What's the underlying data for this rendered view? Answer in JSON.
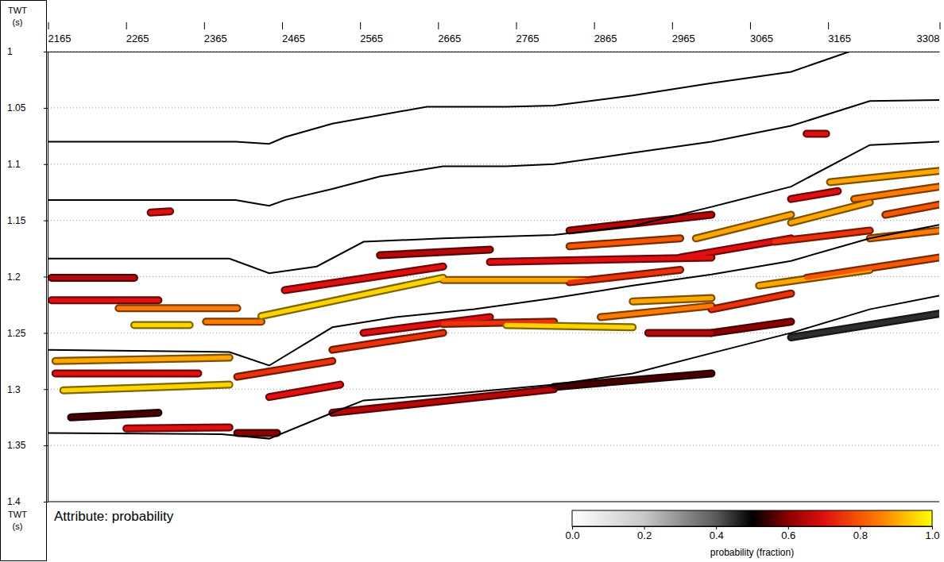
{
  "chart_data": {
    "type": "seismic_section",
    "annotation": "Attribute: probability",
    "ylabel": "TWT (s)",
    "xlim": [
      2165,
      3308
    ],
    "xticks": [
      2165,
      2265,
      2365,
      2465,
      2565,
      2665,
      2765,
      2865,
      2965,
      3065,
      3165,
      3308
    ],
    "ylim": [
      1,
      1.4
    ],
    "yticks": [
      1,
      1.05,
      1.1,
      1.15,
      1.2,
      1.25,
      1.3,
      1.35,
      1.4
    ],
    "grid": true,
    "horizons": [
      {
        "x": [
          2165,
          2406,
          2449,
          2469,
          2530,
          2651,
          2753,
          2814,
          2915,
          3016,
          3118,
          3193
        ],
        "twt": [
          1.08,
          1.08,
          1.082,
          1.076,
          1.064,
          1.049,
          1.049,
          1.048,
          1.039,
          1.028,
          1.018,
          1.0
        ]
      },
      {
        "x": [
          2165,
          2406,
          2449,
          2469,
          2530,
          2591,
          2672,
          2753,
          2814,
          2915,
          3016,
          3118,
          3219,
          3308
        ],
        "twt": [
          1.132,
          1.132,
          1.137,
          1.132,
          1.122,
          1.111,
          1.102,
          1.102,
          1.1,
          1.09,
          1.08,
          1.066,
          1.044,
          1.043
        ]
      },
      {
        "x": [
          2165,
          2398,
          2449,
          2510,
          2570,
          2672,
          2814,
          2915,
          3016,
          3118,
          3219,
          3308
        ],
        "twt": [
          1.184,
          1.184,
          1.197,
          1.191,
          1.169,
          1.166,
          1.163,
          1.155,
          1.138,
          1.12,
          1.083,
          1.08
        ]
      },
      {
        "x": [
          2165,
          2398,
          2449,
          2530,
          2611,
          2712,
          2814,
          2915,
          3016,
          3118,
          3219,
          3308
        ],
        "twt": [
          1.265,
          1.267,
          1.279,
          1.245,
          1.236,
          1.229,
          1.219,
          1.208,
          1.198,
          1.186,
          1.166,
          1.154
        ]
      },
      {
        "x": [
          2165,
          2388,
          2449,
          2530,
          2570,
          2672,
          2814,
          2915,
          3016,
          3118,
          3219,
          3308
        ],
        "twt": [
          1.339,
          1.34,
          1.344,
          1.321,
          1.31,
          1.305,
          1.296,
          1.286,
          1.268,
          1.25,
          1.229,
          1.217
        ]
      }
    ],
    "bodies": [
      {
        "x": [
          2170,
          2276
        ],
        "twt": [
          1.201,
          1.201
        ],
        "probability": 0.65
      },
      {
        "x": [
          2170,
          2307
        ],
        "twt": [
          1.221,
          1.221
        ],
        "probability": 0.7
      },
      {
        "x": [
          2256,
          2408
        ],
        "twt": [
          1.228,
          1.228
        ],
        "probability": 0.85
      },
      {
        "x": [
          2276,
          2347
        ],
        "twt": [
          1.243,
          1.243
        ],
        "probability": 0.95
      },
      {
        "x": [
          2368,
          2439
        ],
        "twt": [
          1.24,
          1.24
        ],
        "probability": 0.85
      },
      {
        "x": [
          2439,
          2672
        ],
        "twt": [
          1.235,
          1.201
        ],
        "probability": 0.95
      },
      {
        "x": [
          2672,
          2854
        ],
        "twt": [
          1.203,
          1.203
        ],
        "probability": 0.9
      },
      {
        "x": [
          2834,
          2976
        ],
        "twt": [
          1.205,
          1.194
        ],
        "probability": 0.75
      },
      {
        "x": [
          2469,
          2672
        ],
        "twt": [
          1.212,
          1.191
        ],
        "probability": 0.7
      },
      {
        "x": [
          2591,
          2732
        ],
        "twt": [
          1.181,
          1.176
        ],
        "probability": 0.65
      },
      {
        "x": [
          2732,
          3016
        ],
        "twt": [
          1.187,
          1.183
        ],
        "probability": 0.7
      },
      {
        "x": [
          2834,
          2976
        ],
        "twt": [
          1.173,
          1.166
        ],
        "probability": 0.8
      },
      {
        "x": [
          2976,
          3118
        ],
        "twt": [
          1.183,
          1.166
        ],
        "probability": 0.7
      },
      {
        "x": [
          2996,
          3118
        ],
        "twt": [
          1.166,
          1.145
        ],
        "probability": 0.9
      },
      {
        "x": [
          3118,
          3219
        ],
        "twt": [
          1.152,
          1.134
        ],
        "probability": 0.9
      },
      {
        "x": [
          3168,
          3308
        ],
        "twt": [
          1.116,
          1.106
        ],
        "probability": 0.9
      },
      {
        "x": [
          3199,
          3308
        ],
        "twt": [
          1.131,
          1.12
        ],
        "probability": 0.85
      },
      {
        "x": [
          3097,
          3219
        ],
        "twt": [
          1.169,
          1.159
        ],
        "probability": 0.75
      },
      {
        "x": [
          2834,
          3016
        ],
        "twt": [
          1.159,
          1.145
        ],
        "probability": 0.65
      },
      {
        "x": [
          3239,
          3308
        ],
        "twt": [
          1.145,
          1.136
        ],
        "probability": 0.8
      },
      {
        "x": [
          3118,
          3178
        ],
        "twt": [
          1.131,
          1.124
        ],
        "probability": 0.7
      },
      {
        "x": [
          2175,
          2398
        ],
        "twt": [
          1.275,
          1.272
        ],
        "probability": 0.9
      },
      {
        "x": [
          2175,
          2358
        ],
        "twt": [
          1.286,
          1.286
        ],
        "probability": 0.7
      },
      {
        "x": [
          2185,
          2398
        ],
        "twt": [
          1.301,
          1.296
        ],
        "probability": 0.95
      },
      {
        "x": [
          2195,
          2307
        ],
        "twt": [
          1.325,
          1.321
        ],
        "probability": 0.55
      },
      {
        "x": [
          2449,
          2540
        ],
        "twt": [
          1.307,
          1.296
        ],
        "probability": 0.7
      },
      {
        "x": [
          2408,
          2530
        ],
        "twt": [
          1.289,
          1.275
        ],
        "probability": 0.75
      },
      {
        "x": [
          2530,
          2672
        ],
        "twt": [
          1.265,
          1.25
        ],
        "probability": 0.75
      },
      {
        "x": [
          2570,
          2732
        ],
        "twt": [
          1.25,
          1.236
        ],
        "probability": 0.7
      },
      {
        "x": [
          2672,
          2814
        ],
        "twt": [
          1.242,
          1.24
        ],
        "probability": 0.75
      },
      {
        "x": [
          2753,
          2915
        ],
        "twt": [
          1.243,
          1.245
        ],
        "probability": 0.95
      },
      {
        "x": [
          2874,
          3016
        ],
        "twt": [
          1.236,
          1.226
        ],
        "probability": 0.85
      },
      {
        "x": [
          2915,
          3016
        ],
        "twt": [
          1.222,
          1.219
        ],
        "probability": 0.9
      },
      {
        "x": [
          3016,
          3118
        ],
        "twt": [
          1.229,
          1.215
        ],
        "probability": 0.75
      },
      {
        "x": [
          3077,
          3219
        ],
        "twt": [
          1.208,
          1.194
        ],
        "probability": 0.9
      },
      {
        "x": [
          3138,
          3308
        ],
        "twt": [
          1.201,
          1.183
        ],
        "probability": 0.8
      },
      {
        "x": [
          3219,
          3308
        ],
        "twt": [
          1.166,
          1.159
        ],
        "probability": 0.85
      },
      {
        "x": [
          3016,
          3118
        ],
        "twt": [
          1.25,
          1.24
        ],
        "probability": 0.6
      },
      {
        "x": [
          2935,
          3016
        ],
        "twt": [
          1.25,
          1.25
        ],
        "probability": 0.65
      },
      {
        "x": [
          2266,
          2398
        ],
        "twt": [
          1.335,
          1.334
        ],
        "probability": 0.7
      },
      {
        "x": [
          2408,
          2459
        ],
        "twt": [
          1.339,
          1.339
        ],
        "probability": 0.6
      },
      {
        "x": [
          2530,
          2814
        ],
        "twt": [
          1.321,
          1.3
        ],
        "probability": 0.65
      },
      {
        "x": [
          2814,
          3016
        ],
        "twt": [
          1.298,
          1.286
        ],
        "probability": 0.55
      },
      {
        "x": [
          3118,
          3308
        ],
        "twt": [
          1.254,
          1.233
        ],
        "probability": 0.45
      },
      {
        "x": [
          2297,
          2322
        ],
        "twt": [
          1.143,
          1.142
        ],
        "probability": 0.7
      },
      {
        "x": [
          3138,
          3163
        ],
        "twt": [
          1.073,
          1.073
        ],
        "probability": 0.7
      }
    ],
    "colorbar": {
      "range": [
        0,
        1
      ],
      "ticks": [
        {
          "value": 0,
          "label": "0.0"
        },
        {
          "value": 0.2,
          "label": "0.2"
        },
        {
          "value": 0.4,
          "label": "0.4"
        },
        {
          "value": 0.6,
          "label": "0.6"
        },
        {
          "value": 0.8,
          "label": "0.8"
        },
        {
          "value": 1,
          "label": "1.0"
        }
      ],
      "label": "probability (fraction)"
    }
  }
}
